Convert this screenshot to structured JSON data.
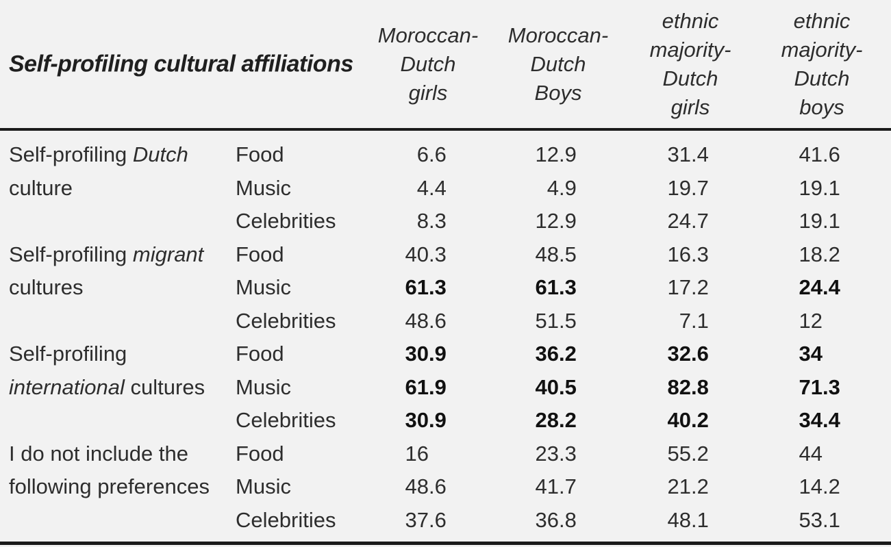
{
  "colors": {
    "background": "#f2f2f2",
    "text": "#2d2d2d",
    "bold_text": "#111111",
    "rule": "#1b1b1b"
  },
  "chart_data": {
    "type": "table",
    "title": "Self-profiling cultural affiliations",
    "columns": [
      {
        "label": "Moroccan-Dutch girls",
        "lines": [
          "Moroccan-",
          "Dutch",
          "girls"
        ]
      },
      {
        "label": "Moroccan-Dutch Boys",
        "lines": [
          "Moroccan-",
          "Dutch",
          "Boys"
        ]
      },
      {
        "label": "ethnic majority-Dutch girls",
        "lines": [
          "ethnic",
          "majority-",
          "Dutch",
          "girls"
        ]
      },
      {
        "label": "ethnic majority-Dutch boys",
        "lines": [
          "ethnic",
          "majority-",
          "Dutch",
          "boys"
        ]
      }
    ],
    "row_groups": [
      {
        "label": "Self-profiling Dutch culture",
        "label_lines": [
          [
            {
              "t": "Self-profiling "
            },
            {
              "t": "Dutch",
              "i": true
            }
          ],
          [
            {
              "t": "culture"
            }
          ]
        ],
        "rows": [
          {
            "category": "Food",
            "values": [
              "6.6",
              "12.9",
              "31.4",
              "41.6"
            ],
            "bold": [
              false,
              false,
              false,
              false
            ]
          },
          {
            "category": "Music",
            "values": [
              "4.4",
              "4.9",
              "19.7",
              "19.1"
            ],
            "bold": [
              false,
              false,
              false,
              false
            ]
          },
          {
            "category": "Celebrities",
            "values": [
              "8.3",
              "12.9",
              "24.7",
              "19.1"
            ],
            "bold": [
              false,
              false,
              false,
              false
            ]
          }
        ]
      },
      {
        "label": "Self-profiling migrant cultures",
        "label_lines": [
          [
            {
              "t": "Self-profiling "
            },
            {
              "t": "migrant",
              "i": true
            }
          ],
          [
            {
              "t": "cultures"
            }
          ]
        ],
        "rows": [
          {
            "category": "Food",
            "values": [
              "40.3",
              "48.5",
              "16.3",
              "18.2"
            ],
            "bold": [
              false,
              false,
              false,
              false
            ]
          },
          {
            "category": "Music",
            "values": [
              "61.3",
              "61.3",
              "17.2",
              "24.4"
            ],
            "bold": [
              true,
              true,
              false,
              true
            ]
          },
          {
            "category": "Celebrities",
            "values": [
              "48.6",
              "51.5",
              "7.1",
              "12"
            ],
            "bold": [
              false,
              false,
              false,
              false
            ]
          }
        ]
      },
      {
        "label": "Self-profiling international cultures",
        "label_lines": [
          [
            {
              "t": "Self-profiling"
            }
          ],
          [
            {
              "t": "international",
              "i": true
            },
            {
              "t": " cultures"
            }
          ]
        ],
        "rows": [
          {
            "category": "Food",
            "values": [
              "30.9",
              "36.2",
              "32.6",
              "34"
            ],
            "bold": [
              true,
              true,
              true,
              true
            ]
          },
          {
            "category": "Music",
            "values": [
              "61.9",
              "40.5",
              "82.8",
              "71.3"
            ],
            "bold": [
              true,
              true,
              true,
              true
            ]
          },
          {
            "category": "Celebrities",
            "values": [
              "30.9",
              "28.2",
              "40.2",
              "34.4"
            ],
            "bold": [
              true,
              true,
              true,
              true
            ]
          }
        ]
      },
      {
        "label": "I do not include the following preferences",
        "label_lines": [
          [
            {
              "t": "I do not include the"
            }
          ],
          [
            {
              "t": "following preferences"
            }
          ]
        ],
        "rows": [
          {
            "category": "Food",
            "values": [
              "16",
              "23.3",
              "55.2",
              "44"
            ],
            "bold": [
              false,
              false,
              false,
              false
            ]
          },
          {
            "category": "Music",
            "values": [
              "48.6",
              "41.7",
              "21.2",
              "14.2"
            ],
            "bold": [
              false,
              false,
              false,
              false
            ]
          },
          {
            "category": "Celebrities",
            "values": [
              "37.6",
              "36.8",
              "48.1",
              "53.1"
            ],
            "bold": [
              false,
              false,
              false,
              false
            ]
          }
        ]
      }
    ]
  }
}
